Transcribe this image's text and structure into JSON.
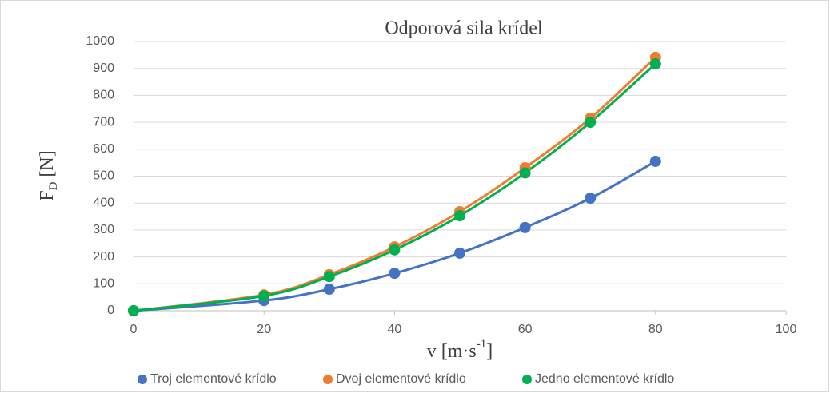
{
  "chart_data": {
    "type": "scatter-smooth",
    "title": "Odporová sila krídel",
    "xlabel": {
      "base": "v [m·s",
      "sup": "-1",
      "rest": "]"
    },
    "ylabel": {
      "base": "F",
      "sub": "D",
      "rest": " [N]"
    },
    "x": [
      0,
      20,
      30,
      40,
      50,
      60,
      70,
      80
    ],
    "series": [
      {
        "name": "Troj elementové krídlo",
        "color": "#4472c4",
        "values": [
          0,
          38,
          80,
          139,
          214,
          309,
          418,
          555
        ]
      },
      {
        "name": "Dvoj elementové krídlo",
        "color": "#ed7d31",
        "values": [
          0,
          59,
          134,
          237,
          368,
          531,
          715,
          941
        ]
      },
      {
        "name": "Jedno elementové krídlo",
        "color": "#00b050",
        "values": [
          0,
          55,
          127,
          226,
          353,
          512,
          700,
          917
        ]
      }
    ],
    "xlim": [
      0,
      100
    ],
    "xticks": [
      0,
      20,
      40,
      60,
      80,
      100
    ],
    "ylim": [
      0,
      1000
    ],
    "yticks": [
      0,
      100,
      200,
      300,
      400,
      500,
      600,
      700,
      800,
      900,
      1000
    ],
    "grid": true,
    "legend": "bottom"
  }
}
